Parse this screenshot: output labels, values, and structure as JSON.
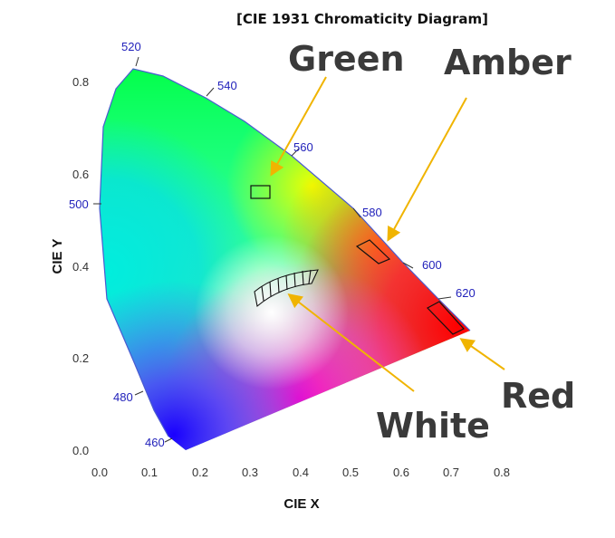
{
  "title": "[CIE 1931 Chromaticity Diagram]",
  "x_axis": {
    "label": "CIE X",
    "ticks": [
      "0.0",
      "0.1",
      "0.2",
      "0.3",
      "0.4",
      "0.5",
      "0.6",
      "0.7",
      "0.8"
    ]
  },
  "y_axis": {
    "label": "CIE Y",
    "ticks": [
      "0.0",
      "0.2",
      "0.4",
      "0.6",
      "0.8"
    ]
  },
  "wavelengths": [
    "520",
    "540",
    "560",
    "580",
    "600",
    "620",
    "500",
    "480",
    "460"
  ],
  "callouts": {
    "green": "Green",
    "amber": "Amber",
    "white": "White",
    "red": "Red"
  },
  "colors": {
    "callout_arrow": "#f0b400",
    "wavelength_text": "#2222bb",
    "callout_text": "#3a3a3a"
  }
}
